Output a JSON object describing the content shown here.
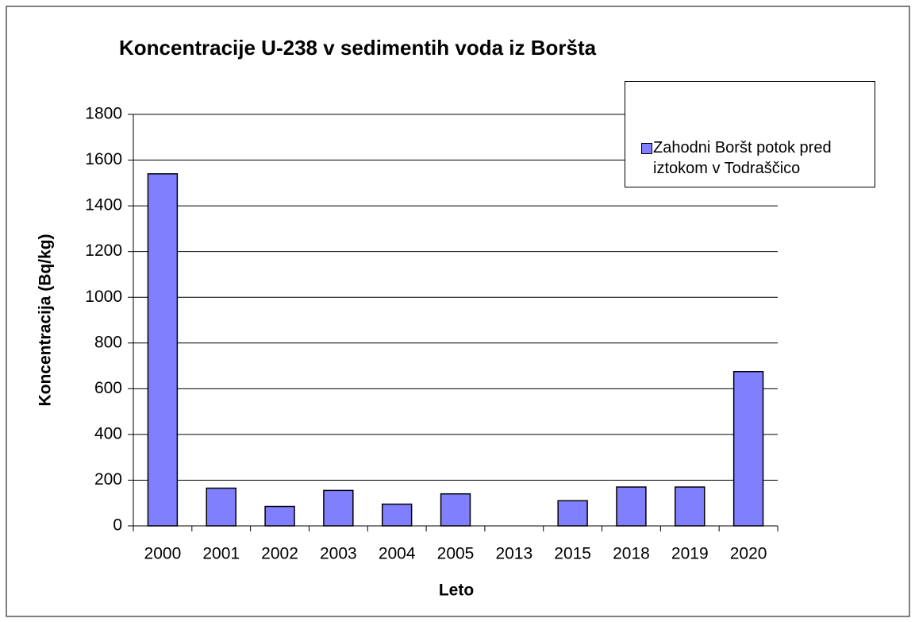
{
  "chart_data": {
    "type": "bar",
    "title": "Koncentracije U-238 v sedimentih voda iz Boršta",
    "x_label": "Leto",
    "y_label": "Koncentracija (Bq/kg)",
    "categories": [
      "2000",
      "2001",
      "2002",
      "2003",
      "2004",
      "2005",
      "2013",
      "2015",
      "2018",
      "2019",
      "2020"
    ],
    "series": [
      {
        "name": "Zahodni Boršt potok pred iztokom v Todraščico",
        "color": "#8080ff",
        "values": [
          1540,
          165,
          85,
          155,
          95,
          140,
          null,
          110,
          170,
          170,
          675
        ]
      }
    ],
    "ylim": [
      0,
      1800
    ],
    "yticks": [
      0,
      200,
      400,
      600,
      800,
      1000,
      1200,
      1400,
      1600,
      1800
    ],
    "grid": true,
    "legend": "top-right"
  }
}
